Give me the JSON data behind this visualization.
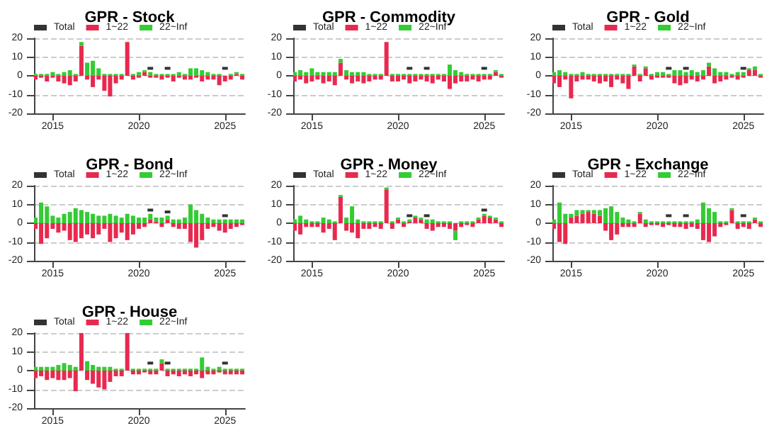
{
  "chart_data": [
    {
      "type": "bar",
      "title": "GPR - Stock",
      "stacked": true,
      "grid": "y",
      "legend": "top left",
      "marker": "square",
      "xlim": [
        "2013-12",
        "2026-03"
      ],
      "xticks": [
        "2015",
        "2020",
        "2025"
      ],
      "ylim": [
        -20,
        20
      ],
      "yticks": [
        -20,
        -10,
        0,
        10,
        20
      ],
      "x": [
        "2014-01",
        "2014-05",
        "2014-09",
        "2015-01",
        "2015-05",
        "2015-09",
        "2016-01",
        "2016-05",
        "2016-09",
        "2017-01",
        "2017-05",
        "2017-09",
        "2018-01",
        "2018-05",
        "2018-09",
        "2019-01",
        "2019-05",
        "2019-09",
        "2020-01",
        "2020-05",
        "2020-09",
        "2021-01",
        "2021-05",
        "2021-09",
        "2022-01",
        "2022-05",
        "2022-09",
        "2023-01",
        "2023-05",
        "2023-09",
        "2024-01",
        "2024-05",
        "2024-09",
        "2025-01",
        "2025-05",
        "2025-09",
        "2026-01"
      ],
      "series": [
        {
          "name": "Total",
          "type": "scatter",
          "color": "#000000",
          "values": [
            null,
            null,
            null,
            null,
            null,
            null,
            null,
            null,
            null,
            null,
            null,
            null,
            null,
            null,
            null,
            null,
            null,
            null,
            null,
            null,
            4,
            null,
            null,
            4,
            null,
            null,
            null,
            null,
            null,
            null,
            null,
            null,
            null,
            4,
            null,
            null,
            null
          ]
        },
        {
          "name": "1~22",
          "color": "#e8294f",
          "values": [
            -2,
            -1,
            -3,
            -1,
            -3,
            -4,
            -5,
            -3,
            16,
            -2,
            -6,
            -2,
            -8,
            -11,
            -4,
            -2,
            18,
            -2,
            -1,
            2,
            -1,
            -1,
            -2,
            -1,
            -3,
            -1,
            -2,
            -2,
            -1,
            -3,
            -2,
            -2,
            -5,
            -3,
            -2,
            1,
            -2
          ]
        },
        {
          "name": "22~Inf",
          "color": "#33cc33",
          "values": [
            1,
            1,
            1,
            2,
            1,
            2,
            3,
            1,
            2,
            7,
            8,
            4,
            1,
            1,
            1,
            1,
            0,
            1,
            2,
            1,
            2,
            1,
            1,
            1,
            1,
            2,
            1,
            4,
            4,
            3,
            2,
            1,
            1,
            0,
            1,
            1,
            1
          ]
        }
      ]
    },
    {
      "type": "bar",
      "title": "GPR - Commodity",
      "stacked": true,
      "grid": "y",
      "legend": "top left",
      "marker": "square",
      "xlim": [
        "2013-12",
        "2026-03"
      ],
      "xticks": [
        "2015",
        "2020",
        "2025"
      ],
      "ylim": [
        -20,
        20
      ],
      "yticks": [
        -20,
        -10,
        0,
        10,
        20
      ],
      "x": [
        "2014-01",
        "2014-05",
        "2014-09",
        "2015-01",
        "2015-05",
        "2015-09",
        "2016-01",
        "2016-05",
        "2016-09",
        "2017-01",
        "2017-05",
        "2017-09",
        "2018-01",
        "2018-05",
        "2018-09",
        "2019-01",
        "2019-05",
        "2019-09",
        "2020-01",
        "2020-05",
        "2020-09",
        "2021-01",
        "2021-05",
        "2021-09",
        "2022-01",
        "2022-05",
        "2022-09",
        "2023-01",
        "2023-05",
        "2023-09",
        "2024-01",
        "2024-05",
        "2024-09",
        "2025-01",
        "2025-05",
        "2025-09",
        "2026-01"
      ],
      "series": [
        {
          "name": "Total",
          "type": "scatter",
          "color": "#000000",
          "values": [
            null,
            null,
            null,
            null,
            null,
            null,
            null,
            null,
            null,
            null,
            null,
            null,
            null,
            null,
            null,
            null,
            null,
            null,
            null,
            null,
            4,
            null,
            null,
            4,
            null,
            null,
            null,
            null,
            null,
            null,
            null,
            null,
            null,
            4,
            null,
            null,
            null
          ]
        },
        {
          "name": "1~22",
          "color": "#e8294f",
          "values": [
            -3,
            -2,
            -4,
            -3,
            -2,
            -4,
            -3,
            -5,
            7,
            -2,
            -4,
            -3,
            -4,
            -3,
            -2,
            -2,
            18,
            -3,
            -3,
            -2,
            -4,
            -3,
            -2,
            -3,
            -4,
            -2,
            -3,
            -7,
            -4,
            -3,
            -3,
            -2,
            -3,
            -2,
            -2,
            2,
            -1
          ]
        },
        {
          "name": "22~Inf",
          "color": "#33cc33",
          "values": [
            2,
            3,
            2,
            4,
            2,
            2,
            2,
            2,
            2,
            3,
            2,
            2,
            2,
            1,
            1,
            1,
            0,
            1,
            1,
            1,
            1,
            1,
            1,
            1,
            1,
            1,
            1,
            6,
            3,
            2,
            1,
            1,
            1,
            1,
            1,
            1,
            1
          ]
        }
      ]
    },
    {
      "type": "bar",
      "title": "GPR - Gold",
      "stacked": true,
      "grid": "y",
      "legend": "top left",
      "marker": "square",
      "xlim": [
        "2013-12",
        "2026-03"
      ],
      "xticks": [
        "2015",
        "2020",
        "2025"
      ],
      "ylim": [
        -20,
        20
      ],
      "yticks": [
        -20,
        -10,
        0,
        10,
        20
      ],
      "x": [
        "2014-01",
        "2014-05",
        "2014-09",
        "2015-01",
        "2015-05",
        "2015-09",
        "2016-01",
        "2016-05",
        "2016-09",
        "2017-01",
        "2017-05",
        "2017-09",
        "2018-01",
        "2018-05",
        "2018-09",
        "2019-01",
        "2019-05",
        "2019-09",
        "2020-01",
        "2020-05",
        "2020-09",
        "2021-01",
        "2021-05",
        "2021-09",
        "2022-01",
        "2022-05",
        "2022-09",
        "2023-01",
        "2023-05",
        "2023-09",
        "2024-01",
        "2024-05",
        "2024-09",
        "2025-01",
        "2025-05",
        "2025-09",
        "2026-01"
      ],
      "series": [
        {
          "name": "Total",
          "type": "scatter",
          "color": "#000000",
          "values": [
            null,
            null,
            null,
            null,
            null,
            null,
            null,
            null,
            null,
            null,
            null,
            null,
            null,
            null,
            null,
            null,
            null,
            null,
            null,
            null,
            4,
            null,
            null,
            4,
            null,
            null,
            null,
            null,
            null,
            null,
            null,
            null,
            null,
            4,
            null,
            null,
            null
          ]
        },
        {
          "name": "1~22",
          "color": "#e8294f",
          "values": [
            -4,
            -6,
            -2,
            -12,
            -3,
            -2,
            -2,
            -3,
            -4,
            -3,
            -6,
            -2,
            -4,
            -7,
            5,
            -3,
            4,
            -2,
            -1,
            -1,
            -1,
            -4,
            -5,
            -4,
            -2,
            -3,
            -2,
            5,
            -4,
            -3,
            -2,
            -1,
            -2,
            -1,
            3,
            3,
            -1
          ]
        },
        {
          "name": "22~Inf",
          "color": "#33cc33",
          "values": [
            2,
            3,
            2,
            1,
            1,
            2,
            1,
            1,
            1,
            1,
            1,
            1,
            1,
            1,
            1,
            1,
            1,
            1,
            2,
            2,
            1,
            3,
            3,
            2,
            3,
            2,
            3,
            2,
            4,
            2,
            2,
            1,
            2,
            2,
            1,
            2,
            1
          ]
        }
      ]
    },
    {
      "type": "bar",
      "title": "GPR - Bond",
      "stacked": true,
      "grid": "y",
      "legend": "top left",
      "marker": "square",
      "xlim": [
        "2013-12",
        "2026-03"
      ],
      "xticks": [
        "2015",
        "2020",
        "2025"
      ],
      "ylim": [
        -20,
        20
      ],
      "yticks": [
        -20,
        -10,
        0,
        10,
        20
      ],
      "x": [
        "2014-01",
        "2014-05",
        "2014-09",
        "2015-01",
        "2015-05",
        "2015-09",
        "2016-01",
        "2016-05",
        "2016-09",
        "2017-01",
        "2017-05",
        "2017-09",
        "2018-01",
        "2018-05",
        "2018-09",
        "2019-01",
        "2019-05",
        "2019-09",
        "2020-01",
        "2020-05",
        "2020-09",
        "2021-01",
        "2021-05",
        "2021-09",
        "2022-01",
        "2022-05",
        "2022-09",
        "2023-01",
        "2023-05",
        "2023-09",
        "2024-01",
        "2024-05",
        "2024-09",
        "2025-01",
        "2025-05",
        "2025-09",
        "2026-01"
      ],
      "series": [
        {
          "name": "Total",
          "type": "scatter",
          "color": "#000000",
          "values": [
            null,
            null,
            null,
            null,
            null,
            null,
            null,
            null,
            null,
            null,
            null,
            null,
            null,
            null,
            null,
            null,
            null,
            null,
            null,
            null,
            7,
            null,
            null,
            6,
            null,
            null,
            null,
            null,
            null,
            null,
            null,
            null,
            null,
            4,
            null,
            null,
            null
          ]
        },
        {
          "name": "1~22",
          "color": "#e8294f",
          "values": [
            -3,
            -11,
            -8,
            -3,
            -5,
            -4,
            -9,
            -10,
            -8,
            -6,
            -8,
            -6,
            -3,
            -10,
            -8,
            -5,
            -9,
            -6,
            -3,
            -2,
            2,
            1,
            -2,
            2,
            -2,
            -3,
            -3,
            -10,
            -13,
            -9,
            -3,
            -2,
            -4,
            -5,
            -3,
            -2,
            -1
          ]
        },
        {
          "name": "22~Inf",
          "color": "#33cc33",
          "values": [
            3,
            11,
            9,
            4,
            3,
            5,
            6,
            8,
            7,
            6,
            5,
            4,
            4,
            5,
            4,
            3,
            5,
            4,
            3,
            3,
            3,
            2,
            3,
            2,
            2,
            2,
            3,
            10,
            7,
            5,
            3,
            2,
            2,
            2,
            2,
            2,
            2
          ]
        }
      ]
    },
    {
      "type": "bar",
      "title": "GPR - Money",
      "stacked": true,
      "grid": "y",
      "legend": "top left",
      "marker": "square",
      "xlim": [
        "2013-12",
        "2026-03"
      ],
      "xticks": [
        "2015",
        "2020",
        "2025"
      ],
      "ylim": [
        -20,
        20
      ],
      "yticks": [
        -20,
        -10,
        0,
        10,
        20
      ],
      "x": [
        "2014-01",
        "2014-05",
        "2014-09",
        "2015-01",
        "2015-05",
        "2015-09",
        "2016-01",
        "2016-05",
        "2016-09",
        "2017-01",
        "2017-05",
        "2017-09",
        "2018-01",
        "2018-05",
        "2018-09",
        "2019-01",
        "2019-05",
        "2019-09",
        "2020-01",
        "2020-05",
        "2020-09",
        "2021-01",
        "2021-05",
        "2021-09",
        "2022-01",
        "2022-05",
        "2022-09",
        "2023-01",
        "2023-05",
        "2023-09",
        "2024-01",
        "2024-05",
        "2024-09",
        "2025-01",
        "2025-05",
        "2025-09",
        "2026-01"
      ],
      "series": [
        {
          "name": "Total",
          "type": "scatter",
          "color": "#000000",
          "values": [
            null,
            null,
            null,
            null,
            null,
            null,
            null,
            null,
            null,
            null,
            null,
            null,
            null,
            null,
            null,
            null,
            null,
            null,
            null,
            null,
            4,
            null,
            null,
            4,
            null,
            null,
            null,
            null,
            null,
            null,
            null,
            null,
            null,
            7,
            null,
            null,
            null
          ]
        },
        {
          "name": "1~22",
          "color": "#e8294f",
          "values": [
            -4,
            -6,
            -2,
            -2,
            -2,
            -5,
            -3,
            -9,
            14,
            -4,
            -5,
            -8,
            -3,
            -3,
            -2,
            -3,
            18,
            -3,
            2,
            -2,
            1,
            3,
            2,
            -3,
            -4,
            -2,
            -2,
            -3,
            -4,
            -2,
            -1,
            -2,
            2,
            4,
            3,
            2,
            -2
          ]
        },
        {
          "name": "22~Inf",
          "color": "#33cc33",
          "values": [
            2,
            4,
            2,
            1,
            1,
            3,
            2,
            1,
            1,
            3,
            9,
            2,
            1,
            1,
            1,
            1,
            1,
            1,
            1,
            1,
            1,
            1,
            1,
            2,
            2,
            1,
            1,
            1,
            -5,
            1,
            1,
            1,
            1,
            1,
            1,
            1,
            1
          ]
        }
      ]
    },
    {
      "type": "bar",
      "title": "GPR - Exchange",
      "stacked": true,
      "grid": "y",
      "legend": "top left",
      "marker": "square",
      "xlim": [
        "2013-12",
        "2026-03"
      ],
      "xticks": [
        "2015",
        "2020",
        "2025"
      ],
      "ylim": [
        -20,
        20
      ],
      "yticks": [
        -20,
        -10,
        0,
        10,
        20
      ],
      "x": [
        "2014-01",
        "2014-05",
        "2014-09",
        "2015-01",
        "2015-05",
        "2015-09",
        "2016-01",
        "2016-05",
        "2016-09",
        "2017-01",
        "2017-05",
        "2017-09",
        "2018-01",
        "2018-05",
        "2018-09",
        "2019-01",
        "2019-05",
        "2019-09",
        "2020-01",
        "2020-05",
        "2020-09",
        "2021-01",
        "2021-05",
        "2021-09",
        "2022-01",
        "2022-05",
        "2022-09",
        "2023-01",
        "2023-05",
        "2023-09",
        "2024-01",
        "2024-05",
        "2024-09",
        "2025-01",
        "2025-05",
        "2025-09",
        "2026-01"
      ],
      "series": [
        {
          "name": "Total",
          "type": "scatter",
          "color": "#000000",
          "values": [
            null,
            null,
            null,
            null,
            null,
            null,
            null,
            null,
            null,
            null,
            null,
            null,
            null,
            null,
            null,
            null,
            null,
            null,
            null,
            null,
            4,
            null,
            null,
            4,
            null,
            null,
            null,
            null,
            null,
            null,
            null,
            null,
            null,
            4,
            null,
            null,
            null
          ]
        },
        {
          "name": "1~22",
          "color": "#e8294f",
          "values": [
            -3,
            -10,
            -11,
            3,
            4,
            5,
            6,
            5,
            4,
            -4,
            -9,
            -6,
            -2,
            -2,
            -2,
            5,
            -2,
            -1,
            -1,
            -2,
            -1,
            -2,
            -2,
            -3,
            -2,
            -3,
            -9,
            -10,
            -7,
            -2,
            -1,
            7,
            -3,
            -2,
            -3,
            2,
            -2
          ]
        },
        {
          "name": "22~Inf",
          "color": "#33cc33",
          "values": [
            2,
            11,
            5,
            2,
            3,
            2,
            1,
            2,
            3,
            8,
            9,
            6,
            3,
            2,
            1,
            1,
            2,
            1,
            1,
            1,
            1,
            1,
            1,
            1,
            1,
            2,
            11,
            8,
            6,
            1,
            1,
            1,
            1,
            1,
            1,
            1,
            1
          ]
        }
      ]
    },
    {
      "type": "bar",
      "title": "GPR - House",
      "stacked": true,
      "grid": "y",
      "legend": "top left",
      "marker": "square",
      "xlim": [
        "2013-12",
        "2026-03"
      ],
      "xticks": [
        "2015",
        "2020",
        "2025"
      ],
      "ylim": [
        -20,
        20
      ],
      "yticks": [
        -20,
        -10,
        0,
        10,
        20
      ],
      "x": [
        "2014-01",
        "2014-05",
        "2014-09",
        "2015-01",
        "2015-05",
        "2015-09",
        "2016-01",
        "2016-05",
        "2016-09",
        "2017-01",
        "2017-05",
        "2017-09",
        "2018-01",
        "2018-05",
        "2018-09",
        "2019-01",
        "2019-05",
        "2019-09",
        "2020-01",
        "2020-05",
        "2020-09",
        "2021-01",
        "2021-05",
        "2021-09",
        "2022-01",
        "2022-05",
        "2022-09",
        "2023-01",
        "2023-05",
        "2023-09",
        "2024-01",
        "2024-05",
        "2024-09",
        "2025-01",
        "2025-05",
        "2025-09",
        "2026-01"
      ],
      "series": [
        {
          "name": "Total",
          "type": "scatter",
          "color": "#000000",
          "values": [
            null,
            null,
            null,
            null,
            null,
            null,
            null,
            null,
            null,
            null,
            null,
            null,
            null,
            null,
            null,
            null,
            null,
            null,
            null,
            null,
            4,
            null,
            null,
            4,
            null,
            null,
            null,
            null,
            null,
            null,
            null,
            null,
            null,
            4,
            null,
            null,
            null
          ]
        },
        {
          "name": "1~22",
          "color": "#e8294f",
          "values": [
            -4,
            -3,
            -5,
            -4,
            -5,
            -5,
            -4,
            -11,
            20,
            -5,
            -7,
            -9,
            -10,
            -6,
            -3,
            -3,
            20,
            -2,
            -2,
            -1,
            -2,
            -2,
            4,
            -3,
            -2,
            -3,
            -2,
            -3,
            -2,
            -4,
            -2,
            -2,
            -1,
            -2,
            -2,
            -2,
            -2
          ]
        },
        {
          "name": "22~Inf",
          "color": "#33cc33",
          "values": [
            2,
            2,
            2,
            2,
            3,
            4,
            3,
            2,
            0,
            5,
            3,
            2,
            2,
            2,
            1,
            1,
            0,
            1,
            1,
            1,
            1,
            1,
            2,
            1,
            1,
            1,
            1,
            1,
            1,
            7,
            2,
            1,
            2,
            1,
            1,
            1,
            1
          ]
        }
      ]
    }
  ]
}
